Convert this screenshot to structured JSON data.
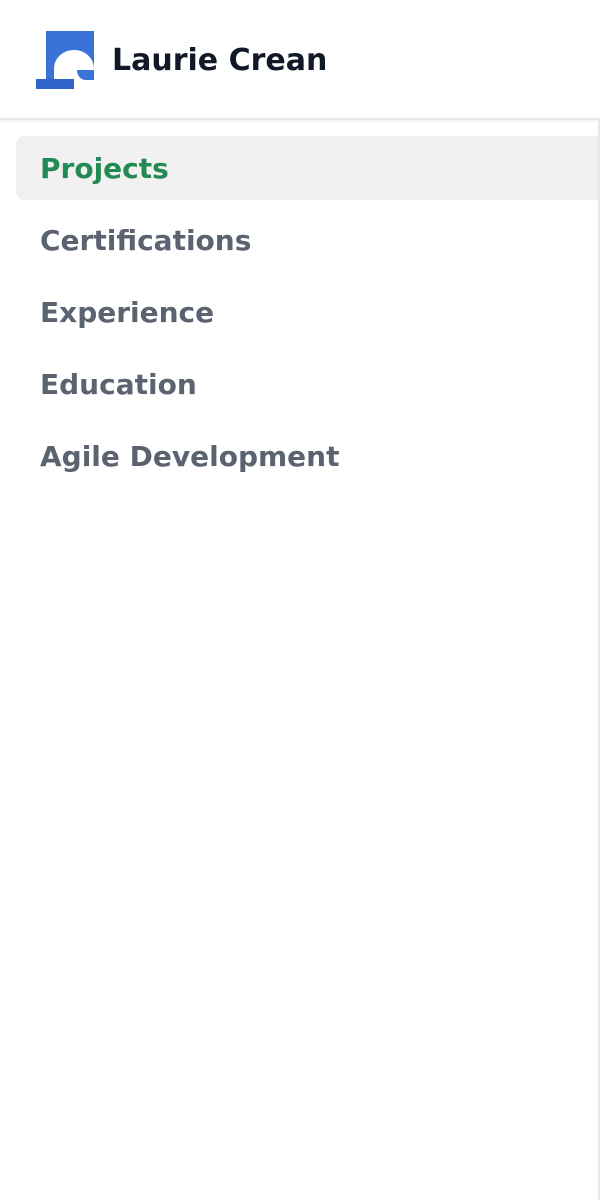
{
  "header": {
    "brand_name": "Laurie Crean",
    "logo_icon": "brand-logo-icon",
    "logo_colors": {
      "primary": "#3a73d8",
      "secondary": "#2f63c9"
    }
  },
  "nav": {
    "items": [
      {
        "label": "Projects",
        "active": true
      },
      {
        "label": "Certifications",
        "active": false
      },
      {
        "label": "Experience",
        "active": false
      },
      {
        "label": "Education",
        "active": false
      },
      {
        "label": "Agile Development",
        "active": false
      }
    ]
  },
  "colors": {
    "active_text": "#238a55",
    "inactive_text": "#5b6371",
    "active_background": "#f1f1f1",
    "title_text": "#111827"
  }
}
